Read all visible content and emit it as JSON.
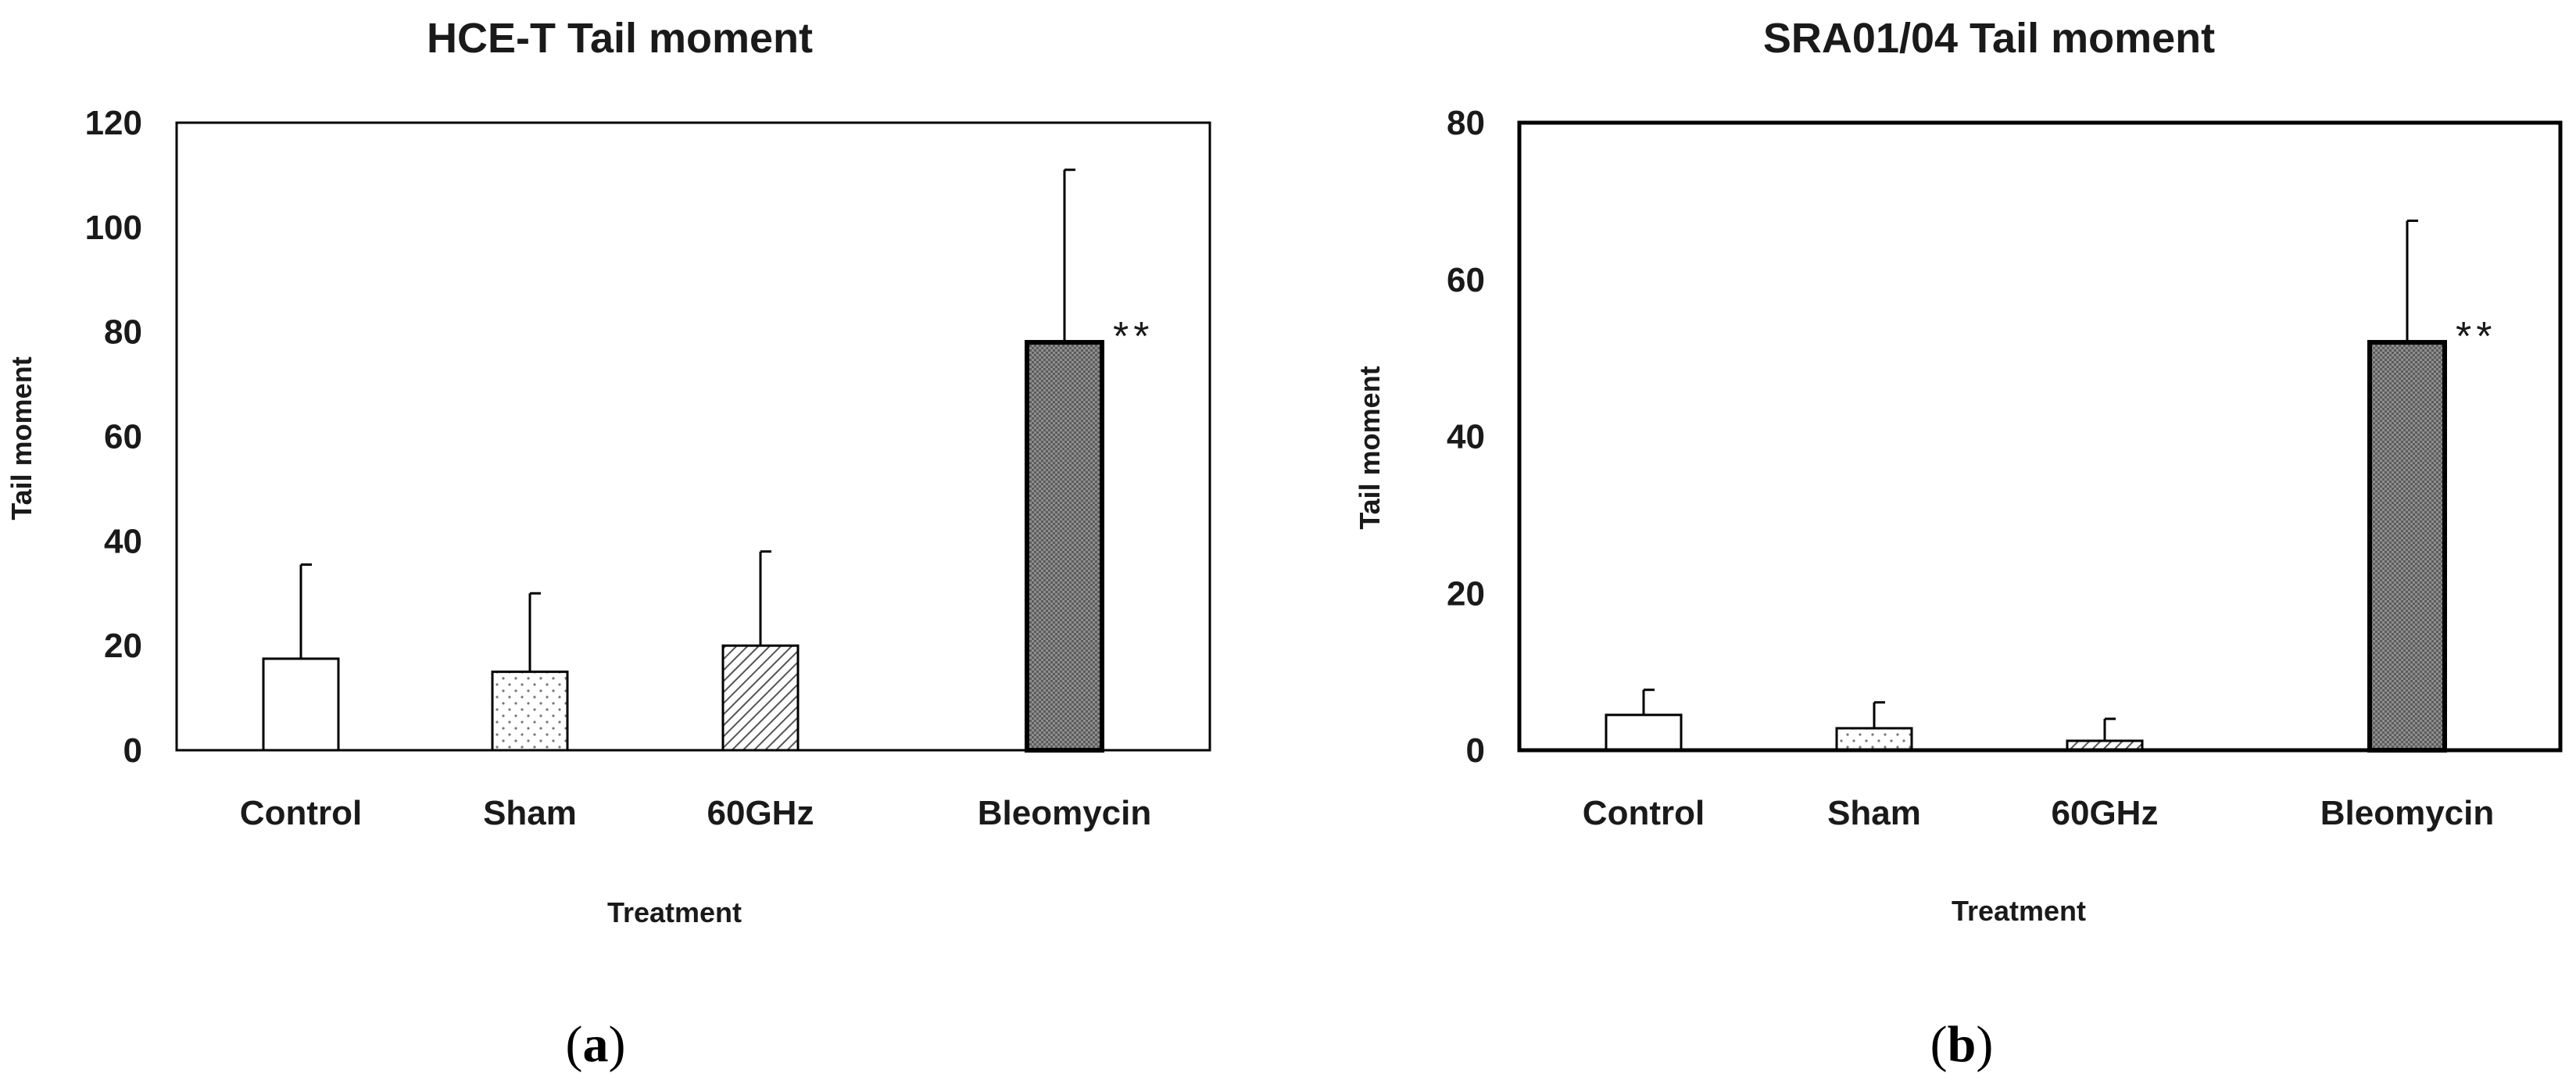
{
  "chart_data": [
    {
      "type": "bar",
      "title": "HCE-T Tail moment",
      "xlabel": "Treatment",
      "ylabel": "Tail moment",
      "ylim": [
        0,
        120
      ],
      "yticks": [
        0,
        20,
        40,
        60,
        80,
        100,
        120
      ],
      "categories": [
        "Control",
        "Sham",
        "60GHz",
        "Bleomycin"
      ],
      "values": [
        17.5,
        15,
        20,
        78
      ],
      "errors": [
        18,
        15,
        18,
        33
      ],
      "fills": [
        "white",
        "dots",
        "diagonal-hatch",
        "dark-crosshatch"
      ],
      "annotations": [
        {
          "category": "Bleomycin",
          "text": "**"
        }
      ],
      "panel_label": "a",
      "panel_open": "(",
      "panel_close": ")"
    },
    {
      "type": "bar",
      "title": "SRA01/04 Tail moment",
      "xlabel": "Treatment",
      "ylabel": "Tail moment",
      "ylim": [
        0,
        80
      ],
      "yticks": [
        0,
        20,
        40,
        60,
        80
      ],
      "categories": [
        "Control",
        "Sham",
        "60GHz",
        "Bleomycin"
      ],
      "values": [
        4.5,
        2.8,
        1.2,
        52
      ],
      "errors": [
        3.2,
        3.3,
        2.8,
        15.5
      ],
      "fills": [
        "white",
        "dots",
        "diagonal-hatch",
        "dark-crosshatch"
      ],
      "annotations": [
        {
          "category": "Bleomycin",
          "text": "**"
        }
      ],
      "panel_label": "b",
      "panel_open": "(",
      "panel_close": ")"
    }
  ]
}
